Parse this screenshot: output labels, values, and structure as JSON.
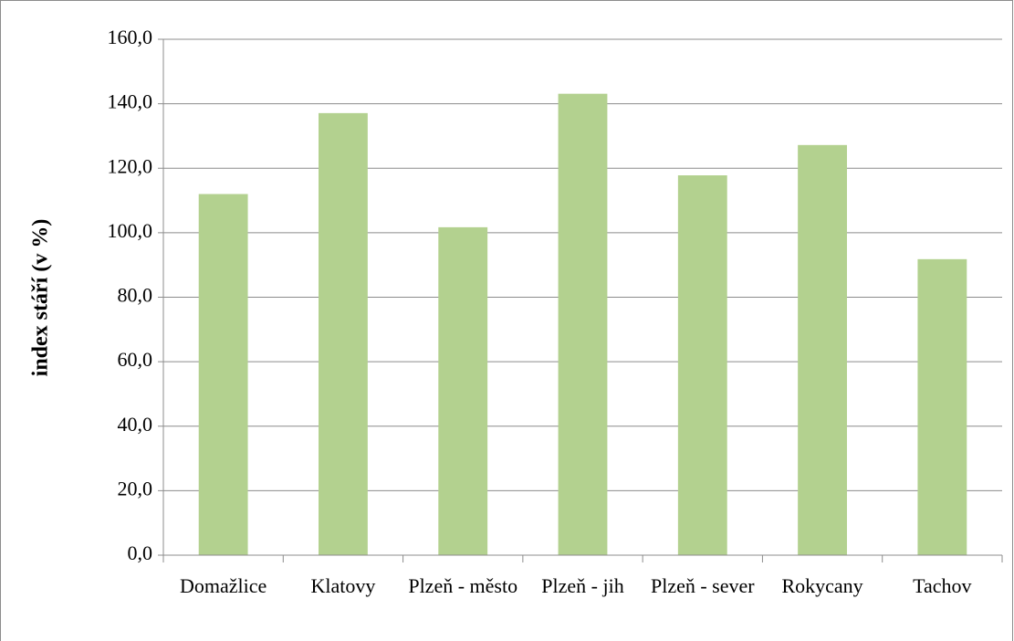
{
  "chart_data": {
    "type": "bar",
    "y_label": "index stáří (v %)",
    "categories": [
      "Domažlice",
      "Klatovy",
      "Plzeň - město",
      "Plzeň - jih",
      "Plzeň - sever",
      "Rokycany",
      "Tachov"
    ],
    "values": [
      112.0,
      137.1,
      101.7,
      143.1,
      117.8,
      127.2,
      91.8
    ],
    "color": "#b3d18f",
    "ylim": [
      0,
      160
    ],
    "yticks": [
      {
        "value": 0,
        "label": "0,0"
      },
      {
        "value": 20,
        "label": "20,0"
      },
      {
        "value": 40,
        "label": "40,0"
      },
      {
        "value": 60,
        "label": "60,0"
      },
      {
        "value": 80,
        "label": "80,0"
      },
      {
        "value": 100,
        "label": "100,0"
      },
      {
        "value": 120,
        "label": "120,0"
      },
      {
        "value": 140,
        "label": "140,0"
      },
      {
        "value": 160,
        "label": "160,0"
      }
    ],
    "grid": true
  }
}
